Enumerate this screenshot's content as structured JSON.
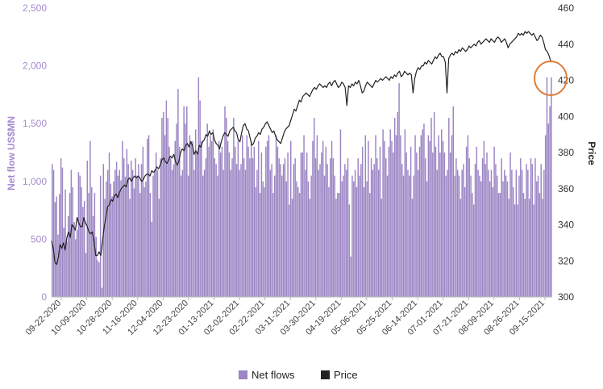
{
  "chart_data": {
    "type": "bar",
    "ylabel": "Net flow US$MN",
    "y2label": "Price",
    "ylim": [
      0,
      2500
    ],
    "y2lim": [
      300,
      460
    ],
    "yticks": [
      "0",
      "500",
      "1,000",
      "1,500",
      "2,000",
      "2,500"
    ],
    "y2ticks": [
      "300",
      "320",
      "340",
      "360",
      "380",
      "400",
      "420",
      "440",
      "460"
    ],
    "x_tick_labels": [
      "09-22-2020",
      "10-09-2020",
      "10-28-2020",
      "11-16-2020",
      "12-04-2020",
      "12-23-2020",
      "01-13-2021",
      "02-02-2021",
      "02-22-2021",
      "03-11-2021",
      "03-30-2021",
      "04-19-2021",
      "05-06-2021",
      "05-25-2021",
      "06-14-2021",
      "07-01-2021",
      "07-21-2021",
      "08-09-2021",
      "08-26-2021",
      "09-15-2021"
    ],
    "series": [
      {
        "name": "Net flows",
        "type": "bar",
        "color": "#9b85c4",
        "values": [
          1150,
          1100,
          820,
          870,
          540,
          890,
          1200,
          1120,
          600,
          930,
          480,
          700,
          900,
          1100,
          950,
          650,
          500,
          580,
          1080,
          1050,
          950,
          780,
          830,
          380,
          1180,
          900,
          1350,
          950,
          700,
          900,
          520,
          320,
          300,
          1050,
          80,
          1150,
          850,
          1000,
          1100,
          1250,
          980,
          870,
          1000,
          1100,
          1170,
          1050,
          1100,
          1010,
          1350,
          1200,
          1040,
          1280,
          1150,
          850,
          1180,
          1100,
          940,
          1200,
          1050,
          1150,
          900,
          1150,
          1300,
          950,
          1000,
          1370,
          1400,
          900,
          650,
          1050,
          1100,
          1250,
          1100,
          850,
          1200,
          1550,
          1600,
          1400,
          1700,
          1550,
          1300,
          1200,
          1100,
          1150,
          1350,
          1500,
          1800,
          1300,
          1050,
          1100,
          1650,
          1500,
          1650,
          1050,
          1400,
          1350,
          1350,
          1100,
          1450,
          1230,
          1900,
          1700,
          1350,
          1050,
          1100,
          1200,
          1500,
          1300,
          1400,
          1350,
          1450,
          1200,
          1150,
          1050,
          1350,
          1250,
          1300,
          1100,
          1650,
          1550,
          1350,
          1250,
          1100,
          1200,
          1550,
          1300,
          1150,
          1350,
          1100,
          1150,
          1400,
          1200,
          1100,
          1400,
          1300,
          1200,
          1350,
          1200,
          1300,
          950,
          1100,
          1350,
          900,
          1250,
          1000,
          950,
          1300,
          1350,
          1400,
          1100,
          1150,
          900,
          1050,
          1400,
          1300,
          1200,
          1150,
          1050,
          1150,
          1200,
          1000,
          1250,
          800,
          1350,
          850,
          1150,
          1200,
          1000,
          950,
          900,
          1250,
          1250,
          1400,
          1100,
          1250,
          1000,
          850,
          1050,
          1350,
          1550,
          1200,
          1400,
          1100,
          1150,
          1250,
          1350,
          1050,
          1300,
          1150,
          950,
          1200,
          1350,
          1200,
          1050,
          850,
          900,
          900,
          1450,
          1000,
          1050,
          1150,
          1100,
          1200,
          800,
          350,
          1050,
          1000,
          1100,
          950,
          1200,
          1050,
          1150,
          1300,
          950,
          1400,
          1000,
          1350,
          900,
          1200,
          1100,
          1150,
          1400,
          1200,
          1100,
          1300,
          850,
          1450,
          1350,
          1200,
          1050,
          1300,
          1450,
          1350,
          1250,
          1550,
          1400,
          1600,
          1850,
          1400,
          1150,
          1050,
          1450,
          1250,
          1100,
          1050,
          1300,
          850,
          1050,
          1400,
          1250,
          1100,
          1300,
          1400,
          1450,
          1500,
          1200,
          1000,
          1400,
          1350,
          1550,
          1250,
          1600,
          1300,
          1100,
          1400,
          1250,
          1450,
          1350,
          1250,
          1050,
          1100,
          1550,
          1250,
          1400,
          1650,
          1050,
          1200,
          1100,
          1050,
          850,
          1100,
          1150,
          950,
          1300,
          1400,
          1200,
          1050,
          900,
          800,
          1150,
          1300,
          1100,
          1050,
          1000,
          1200,
          1350,
          1150,
          1250,
          1100,
          1000,
          1100,
          950,
          1300,
          1150,
          1050,
          900,
          900,
          1200,
          1000,
          1100,
          1050,
          1000,
          850,
          1250,
          1100,
          950,
          800,
          1100,
          800,
          1050,
          1200,
          1100,
          900,
          850,
          1150,
          1100,
          850,
          1200,
          1150,
          800,
          1200,
          1000,
          1050,
          900,
          1150,
          850,
          1100,
          1400,
          1900,
          1500,
          1650,
          1900
        ]
      },
      {
        "name": "Price",
        "type": "line",
        "color": "#222222",
        "values": [
          331,
          327,
          319,
          318,
          322,
          329,
          327,
          330,
          326,
          333,
          336,
          333,
          340,
          339,
          337,
          344,
          341,
          339,
          339,
          344,
          341,
          339,
          336,
          335,
          336,
          331,
          323,
          323,
          325,
          323,
          331,
          339,
          344,
          350,
          351,
          354,
          353,
          356,
          357,
          355,
          358,
          360,
          361,
          362,
          361,
          365,
          366,
          364,
          366,
          367,
          366,
          367,
          366,
          364,
          365,
          367,
          368,
          368,
          367,
          370,
          369,
          370,
          372,
          371,
          373,
          376,
          377,
          375,
          374,
          376,
          378,
          377,
          379,
          375,
          373,
          375,
          380,
          382,
          381,
          384,
          385,
          383,
          386,
          384,
          379,
          381,
          379,
          384,
          383,
          386,
          387,
          390,
          389,
          392,
          390,
          391,
          387,
          385,
          384,
          382,
          386,
          389,
          391,
          390,
          389,
          392,
          393,
          394,
          392,
          391,
          387,
          386,
          391,
          395,
          396,
          393,
          392,
          388,
          384,
          385,
          388,
          389,
          391,
          390,
          393,
          394,
          396,
          397,
          395,
          393,
          391,
          392,
          389,
          387,
          386,
          385,
          388,
          391,
          393,
          394,
          395,
          398,
          401,
          404,
          403,
          406,
          409,
          408,
          411,
          412,
          413,
          412,
          411,
          413,
          415,
          416,
          415,
          417,
          418,
          417,
          416,
          417,
          416,
          418,
          419,
          417,
          419,
          420,
          418,
          416,
          417,
          419,
          418,
          416,
          406,
          417,
          416,
          418,
          417,
          419,
          418,
          420,
          417,
          413,
          414,
          417,
          419,
          418,
          417,
          416,
          418,
          420,
          419,
          420,
          421,
          420,
          421,
          422,
          421,
          420,
          422,
          421,
          423,
          422,
          424,
          425,
          422,
          423,
          425,
          424,
          423,
          424,
          423,
          413,
          421,
          425,
          427,
          426,
          428,
          428,
          430,
          429,
          431,
          430,
          429,
          431,
          433,
          432,
          434,
          435,
          433,
          433,
          430,
          413,
          432,
          434,
          435,
          434,
          436,
          435,
          437,
          436,
          438,
          437,
          436,
          437,
          439,
          438,
          439,
          440,
          439,
          441,
          442,
          440,
          441,
          442,
          443,
          442,
          441,
          443,
          442,
          441,
          443,
          444,
          443,
          441,
          442,
          443,
          441,
          438,
          440,
          441,
          442,
          443,
          444,
          446,
          445,
          446,
          445,
          447,
          446,
          447,
          446,
          445,
          446,
          444,
          442,
          443,
          445,
          444,
          441,
          437,
          436,
          434,
          431,
          430
        ]
      }
    ],
    "legend": [
      "Net flows",
      "Price"
    ],
    "legend_position": "bottom-center",
    "grid": false,
    "annotations": [
      {
        "type": "circle",
        "color": "#e07b39",
        "near": "end of series"
      }
    ]
  }
}
